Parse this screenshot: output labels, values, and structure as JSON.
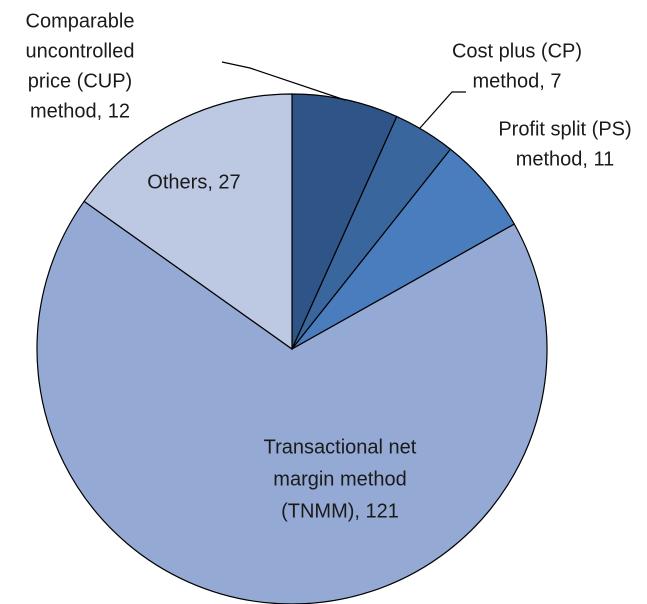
{
  "chart_data": {
    "type": "pie",
    "values": [
      12,
      7,
      11,
      121,
      27
    ],
    "value_labels": [
      [
        "Comparable",
        "uncontrolled",
        "price (CUP)",
        "method, 12"
      ],
      [
        "Cost plus (CP)",
        "method, 7"
      ],
      [
        "Profit split (PS)",
        "method, 11"
      ],
      [
        "Transactional net",
        "margin method",
        "(TNMM), 121"
      ],
      [
        "Others, 27"
      ]
    ],
    "colors": [
      "#2f5588",
      "#3a669e",
      "#4a7dbd",
      "#94a9d3",
      "#bdc9e3"
    ]
  }
}
